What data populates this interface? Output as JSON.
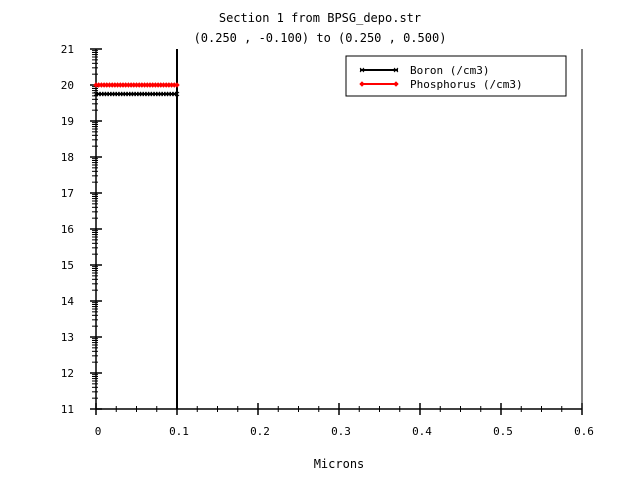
{
  "chart_data": {
    "type": "line",
    "title": "Section 1 from BPSG_depo.str",
    "subtitle": "(0.250 , -0.100) to (0.250 , 0.500)",
    "xlabel": "Microns",
    "ylabel": "",
    "xlim": [
      0,
      0.6
    ],
    "ylim": [
      11,
      21
    ],
    "x_ticks": [
      "0",
      "0.1",
      "0.2",
      "0.3",
      "0.4",
      "0.5",
      "0.6"
    ],
    "y_ticks": [
      "11",
      "12",
      "13",
      "14",
      "15",
      "16",
      "17",
      "18",
      "19",
      "20",
      "21"
    ],
    "y_scale": "log10",
    "grid": false,
    "legend_position": "top-right",
    "boundary_x": 0.1,
    "series": [
      {
        "name": "Boron (/cm3)",
        "color": "#000000",
        "marker": "x",
        "x": [
          0,
          0.1
        ],
        "y": [
          19.75,
          19.75
        ]
      },
      {
        "name": "Phosphorus (/cm3)",
        "color": "#ff0000",
        "marker": "diamond",
        "x": [
          0,
          0.1
        ],
        "y": [
          20.0,
          20.0
        ]
      }
    ]
  }
}
